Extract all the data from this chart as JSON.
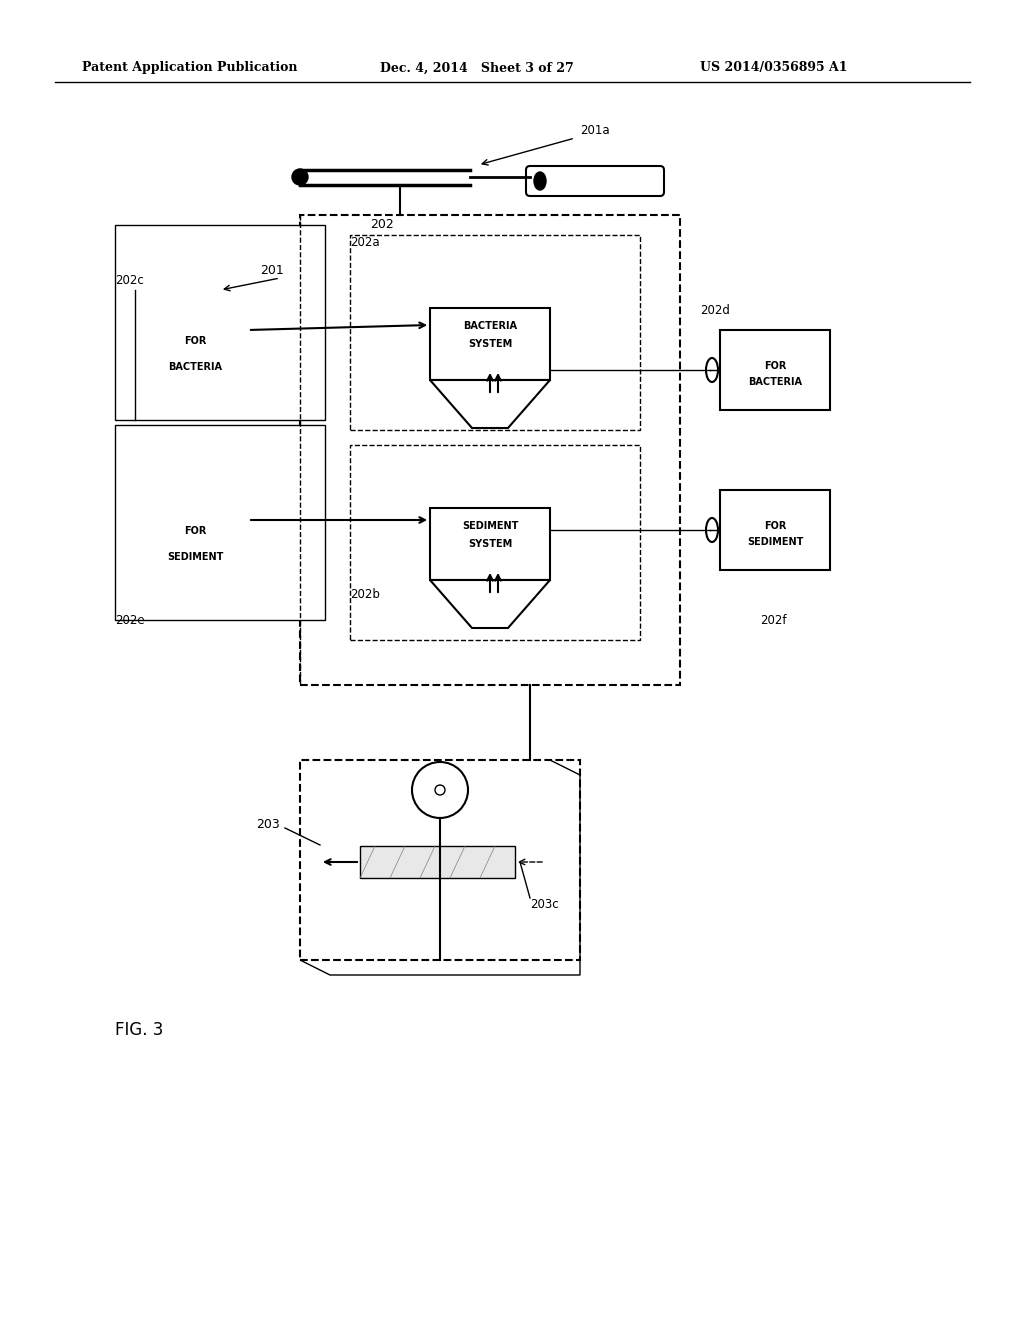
{
  "bg_color": "#ffffff",
  "header_left": "Patent Application Publication",
  "header_mid": "Dec. 4, 2014   Sheet 3 of 27",
  "header_right": "US 2014/0356895 A1",
  "fig_label": "FIG. 3",
  "labels": {
    "201a": "201a",
    "202": "202",
    "202a": "202a",
    "202b": "202b",
    "202c": "202c",
    "202d": "202d",
    "202e": "202e",
    "202f": "202f",
    "201": "201",
    "203": "203",
    "203c": "203c"
  }
}
